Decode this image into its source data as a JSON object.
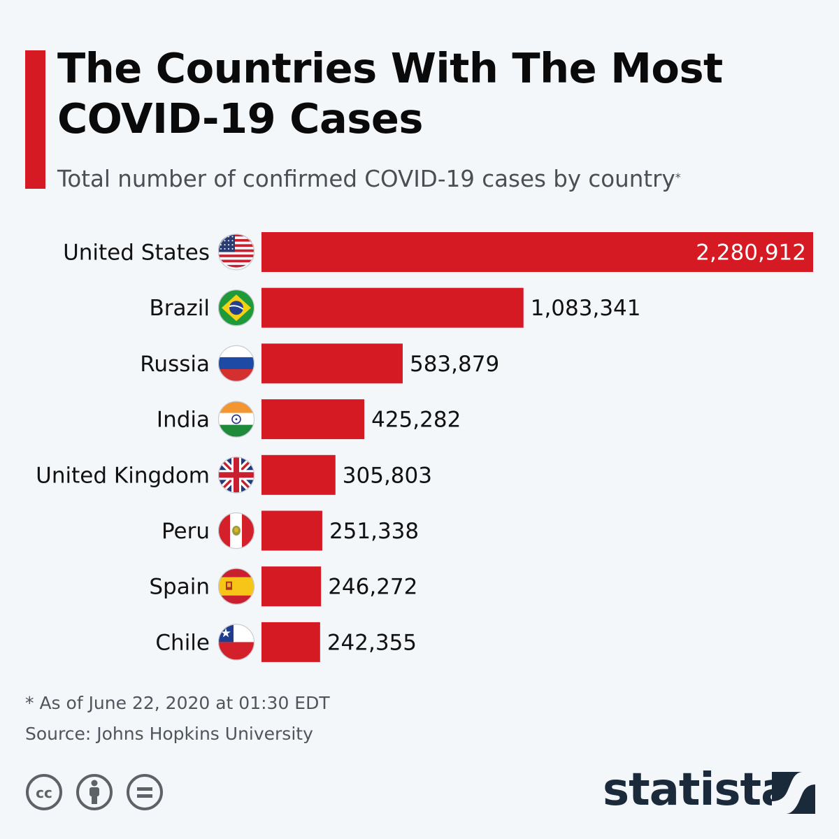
{
  "title": "The Countries With The Most COVID-19 Cases",
  "subtitle": "Total number of confirmed COVID-19 cases by country",
  "subtitle_mark": "*",
  "footnote": "* As of June 22, 2020 at 01:30 EDT",
  "source": "Source: Johns Hopkins University",
  "brand": "statista",
  "colors": {
    "accent": "#d51a24",
    "bar": "#d51a24",
    "brand": "#1b2a3a",
    "label_inside": "#ffffff",
    "label_outside": "#111111"
  },
  "license_icons": [
    "creative-commons-icon",
    "attribution-icon",
    "no-derivatives-icon"
  ],
  "chart_data": {
    "type": "bar",
    "orientation": "horizontal",
    "categories": [
      "United States",
      "Brazil",
      "Russia",
      "India",
      "United Kingdom",
      "Peru",
      "Spain",
      "Chile"
    ],
    "values": [
      2280912,
      1083341,
      583879,
      425282,
      305803,
      251338,
      246272,
      242355
    ],
    "value_labels": [
      "2,280,912",
      "1,083,341",
      "583,879",
      "425,282",
      "305,803",
      "251,338",
      "246,272",
      "242,355"
    ],
    "flags": [
      "us-flag-icon",
      "brazil-flag-icon",
      "russia-flag-icon",
      "india-flag-icon",
      "uk-flag-icon",
      "peru-flag-icon",
      "spain-flag-icon",
      "chile-flag-icon"
    ],
    "xlim": [
      0,
      2280912
    ],
    "grid": false,
    "legend": "none"
  }
}
